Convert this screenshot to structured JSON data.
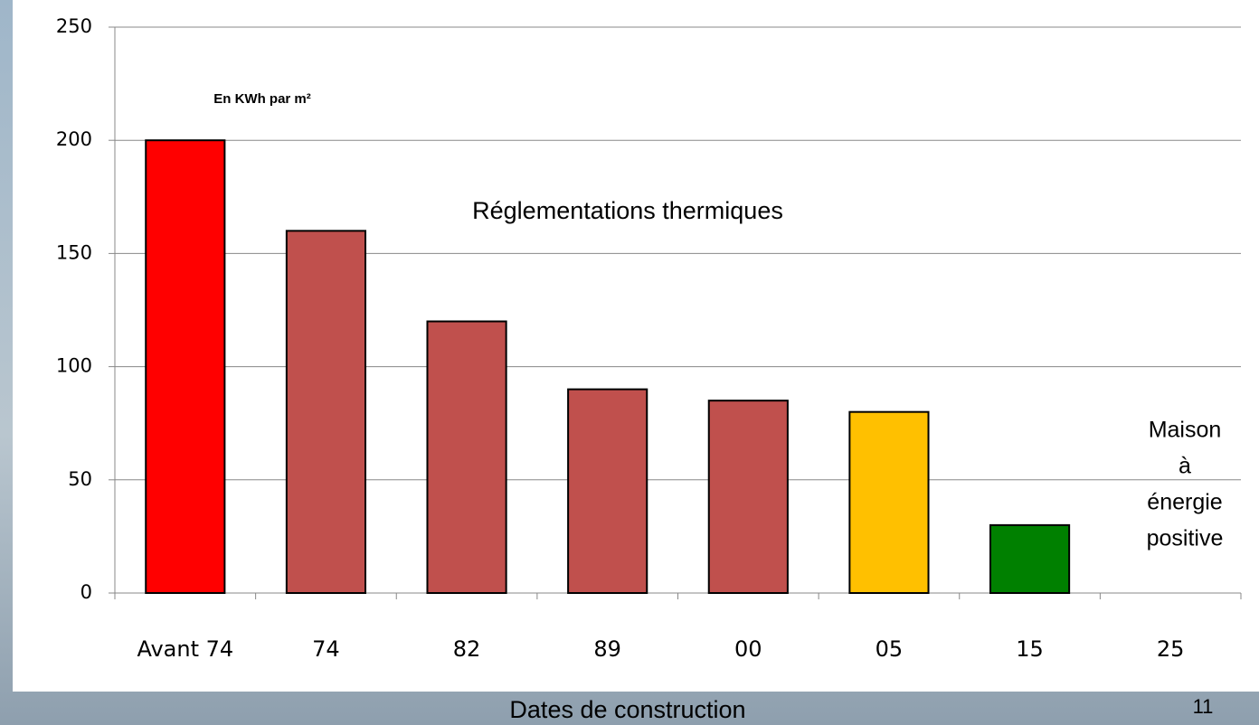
{
  "chart_data": {
    "type": "bar",
    "categories": [
      "Avant 74",
      "74",
      "82",
      "89",
      "00",
      "05",
      "15",
      "25"
    ],
    "values": [
      200,
      160,
      120,
      90,
      85,
      80,
      30,
      null
    ],
    "colors": [
      "#ff0000",
      "#c0504d",
      "#c0504d",
      "#c0504d",
      "#c0504d",
      "#ffc000",
      "#008000",
      null
    ],
    "ylim": [
      0,
      250
    ],
    "yticks": [
      0,
      50,
      100,
      150,
      200,
      250
    ],
    "grid": true,
    "unit_note": "En KWh par m²",
    "annotation": "Réglementations thermiques",
    "note_lines": [
      "Maison",
      "à",
      "énergie",
      "positive"
    ],
    "xlabel": "Dates de construction",
    "page_number": "11"
  }
}
